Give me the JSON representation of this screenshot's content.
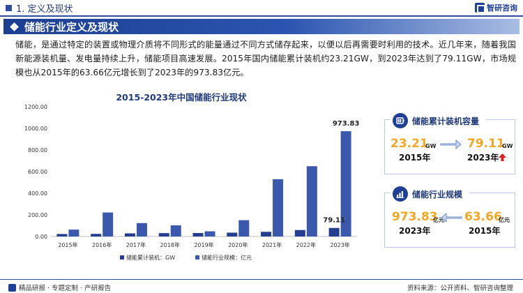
{
  "header": {
    "section": "1. 定义及现状",
    "brand": "智研咨询"
  },
  "banner": {
    "title": "储能行业定义及现状"
  },
  "intro": "储能，是通过特定的装置或物理介质将不同形式的能量通过不同方式储存起来，以便以后再需要时利用的技术。近几年来，随着我国新能源装机量、发电量持续上升，储能项目高速发展。2015年国内储能累计装机约23.21GW，到2023年达到了79.11GW，市场规模也从2015年的63.66亿元增长到了2023年的973.83亿元。",
  "chart_data": {
    "type": "bar",
    "title": "2015-2023年中国储能行业现状",
    "categories": [
      "2015年",
      "2016年",
      "2017年",
      "2018年",
      "2019年",
      "2020年",
      "2021年",
      "2022年",
      "2023年"
    ],
    "series": [
      {
        "name": "储能累计装机：GW",
        "values": [
          23.21,
          24.2,
          28.9,
          31.3,
          32.4,
          35.6,
          43.4,
          59.8,
          79.11
        ],
        "color": "#243f8f"
      },
      {
        "name": "储能行业规模：亿元",
        "values": [
          63.66,
          222,
          124,
          103,
          48,
          151,
          530,
          650,
          973.83
        ],
        "color": "#3a59ac"
      }
    ],
    "yticks": [
      "0.00",
      "200.00",
      "400.00",
      "600.00",
      "800.00",
      "1000.00",
      "1200.00"
    ],
    "ylim": [
      0,
      1200
    ],
    "data_labels": [
      {
        "series": 0,
        "index": 8,
        "text": "79.11"
      },
      {
        "series": 1,
        "index": 8,
        "text": "973.83"
      }
    ],
    "grid": false,
    "legend_position": "bottom"
  },
  "cards": {
    "capacity": {
      "title": "储能累计装机容量",
      "left_value": "23.21",
      "left_unit": "GW",
      "left_year": "2015年",
      "right_value": "79.11",
      "right_unit": "GW",
      "right_year": "2023年"
    },
    "scale": {
      "title": "储能行业规模",
      "left_value": "973.83",
      "left_unit": "亿元",
      "left_year": "2023年",
      "right_value": "63.66",
      "right_unit": "亿元",
      "right_year": "2015年"
    }
  },
  "footer": {
    "left": "精品研报 · 专题定制 · 产研报告",
    "right": "资料来源：公开资料、智研咨询整理"
  },
  "colors": {
    "accent": "#1e3f96",
    "highlight": "#f5a623",
    "up_arrow": "#e02020"
  }
}
